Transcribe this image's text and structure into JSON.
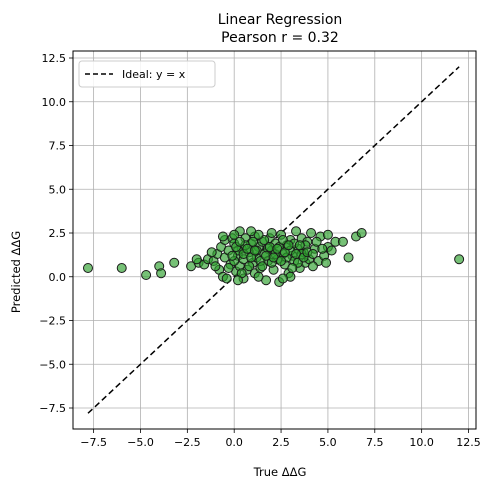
{
  "chart_data": {
    "type": "scatter",
    "title": "Linear Regression",
    "subtitle": "Pearson r = 0.32",
    "xlabel": "True ΔΔG",
    "ylabel": "Predicted ΔΔG",
    "xlim": [
      -8.6,
      12.9
    ],
    "ylim": [
      -8.7,
      12.9
    ],
    "x_ticks": [
      -7.5,
      -5.0,
      -2.5,
      0.0,
      2.5,
      5.0,
      7.5,
      10.0,
      12.5
    ],
    "y_ticks": [
      -7.5,
      -5.0,
      -2.5,
      0.0,
      2.5,
      5.0,
      7.5,
      10.0,
      12.5
    ],
    "x_tick_labels": [
      "−7.5",
      "−5.0",
      "−2.5",
      "0.0",
      "2.5",
      "5.0",
      "7.5",
      "10.0",
      "12.5"
    ],
    "y_tick_labels": [
      "−7.5",
      "−5.0",
      "−2.5",
      "0.0",
      "2.5",
      "5.0",
      "7.5",
      "10.0",
      "12.5"
    ],
    "grid": true,
    "legend": {
      "position": "top-left",
      "entries": [
        "Ideal: y = x"
      ]
    },
    "ideal_line": {
      "label": "Ideal: y = x",
      "x": [
        -7.8,
        12.0
      ],
      "y": [
        -7.8,
        12.0
      ],
      "style": "dashed",
      "color": "#000000"
    },
    "point_color": "#2ca02c",
    "point_edge_color": "#1a1a1a",
    "points": [
      [
        -7.8,
        0.5
      ],
      [
        -6.0,
        0.5
      ],
      [
        -4.7,
        0.1
      ],
      [
        -4.0,
        0.6
      ],
      [
        -3.9,
        0.2
      ],
      [
        -3.2,
        0.8
      ],
      [
        -2.3,
        0.6
      ],
      [
        -1.9,
        0.8
      ],
      [
        -1.6,
        0.7
      ],
      [
        -1.4,
        1.0
      ],
      [
        -1.1,
        0.9
      ],
      [
        -0.9,
        1.3
      ],
      [
        -0.8,
        0.4
      ],
      [
        -0.7,
        1.7
      ],
      [
        -0.6,
        0.0
      ],
      [
        -0.5,
        2.1
      ],
      [
        -0.5,
        1.1
      ],
      [
        -0.4,
        -0.1
      ],
      [
        -0.3,
        1.5
      ],
      [
        -0.2,
        0.7
      ],
      [
        -0.1,
        2.2
      ],
      [
        0.0,
        1.9
      ],
      [
        0.1,
        0.3
      ],
      [
        0.2,
        1.2
      ],
      [
        0.3,
        2.6
      ],
      [
        0.3,
        0.6
      ],
      [
        0.4,
        1.6
      ],
      [
        0.5,
        -0.1
      ],
      [
        0.5,
        1.0
      ],
      [
        0.6,
        2.2
      ],
      [
        0.7,
        0.4
      ],
      [
        0.8,
        1.4
      ],
      [
        0.9,
        1.9
      ],
      [
        1.0,
        0.8
      ],
      [
        1.1,
        2.3
      ],
      [
        1.1,
        0.2
      ],
      [
        1.2,
        1.1
      ],
      [
        1.3,
        1.7
      ],
      [
        1.4,
        0.5
      ],
      [
        1.5,
        2.0
      ],
      [
        1.6,
        1.3
      ],
      [
        1.7,
        -0.2
      ],
      [
        1.8,
        0.9
      ],
      [
        1.9,
        2.2
      ],
      [
        2.0,
        1.5
      ],
      [
        2.1,
        0.4
      ],
      [
        2.2,
        1.9
      ],
      [
        2.3,
        1.0
      ],
      [
        2.4,
        -0.3
      ],
      [
        2.5,
        2.4
      ],
      [
        2.6,
        1.3
      ],
      [
        2.7,
        0.7
      ],
      [
        2.8,
        1.8
      ],
      [
        2.9,
        0.2
      ],
      [
        3.0,
        2.1
      ],
      [
        3.1,
        1.2
      ],
      [
        3.2,
        0.9
      ],
      [
        3.3,
        2.6
      ],
      [
        3.4,
        1.6
      ],
      [
        3.5,
        0.5
      ],
      [
        3.6,
        2.2
      ],
      [
        3.7,
        1.4
      ],
      [
        3.8,
        0.8
      ],
      [
        3.9,
        2.0
      ],
      [
        4.0,
        1.0
      ],
      [
        4.1,
        2.5
      ],
      [
        4.3,
        1.6
      ],
      [
        4.5,
        0.9
      ],
      [
        4.6,
        2.3
      ],
      [
        4.8,
        1.2
      ],
      [
        5.0,
        1.7
      ],
      [
        5.0,
        2.4
      ],
      [
        5.4,
        2.0
      ],
      [
        6.1,
        1.1
      ],
      [
        6.5,
        2.3
      ],
      [
        6.8,
        2.5
      ],
      [
        12.0,
        1.0
      ],
      [
        0.0,
        0.9
      ],
      [
        0.2,
        1.5
      ],
      [
        0.4,
        0.2
      ],
      [
        0.6,
        1.8
      ],
      [
        0.8,
        0.6
      ],
      [
        1.0,
        2.0
      ],
      [
        1.2,
        1.5
      ],
      [
        1.4,
        0.9
      ],
      [
        1.6,
        2.1
      ],
      [
        1.8,
        1.6
      ],
      [
        2.0,
        0.8
      ],
      [
        2.2,
        1.3
      ],
      [
        2.4,
        1.7
      ],
      [
        2.6,
        2.1
      ],
      [
        2.8,
        1.1
      ],
      [
        3.0,
        1.5
      ],
      [
        3.2,
        1.9
      ],
      [
        3.4,
        0.8
      ],
      [
        3.6,
        1.3
      ],
      [
        3.8,
        1.8
      ],
      [
        -0.3,
        0.5
      ],
      [
        -0.1,
        1.2
      ],
      [
        0.1,
        1.7
      ],
      [
        0.3,
        2.0
      ],
      [
        0.5,
        1.3
      ],
      [
        0.7,
        1.6
      ],
      [
        0.9,
        1.1
      ],
      [
        1.1,
        1.5
      ],
      [
        1.3,
        2.4
      ],
      [
        1.5,
        0.6
      ],
      [
        1.7,
        1.2
      ],
      [
        1.9,
        1.7
      ],
      [
        2.1,
        1.1
      ],
      [
        2.3,
        1.6
      ],
      [
        2.5,
        0.9
      ],
      [
        2.7,
        1.4
      ],
      [
        2.9,
        1.8
      ],
      [
        3.1,
        0.5
      ],
      [
        3.3,
        1.3
      ],
      [
        3.5,
        1.8
      ],
      [
        3.7,
        1.1
      ],
      [
        3.9,
        1.4
      ],
      [
        4.2,
        1.3
      ],
      [
        4.4,
        2.0
      ],
      [
        4.7,
        1.6
      ],
      [
        -1.2,
        1.4
      ],
      [
        -0.6,
        2.3
      ],
      [
        0.0,
        2.4
      ],
      [
        0.9,
        2.6
      ],
      [
        2.0,
        2.5
      ],
      [
        3.0,
        0.0
      ],
      [
        2.6,
        -0.1
      ],
      [
        1.3,
        0.0
      ],
      [
        0.2,
        -0.2
      ],
      [
        4.2,
        0.6
      ],
      [
        5.2,
        1.5
      ],
      [
        5.8,
        2.0
      ],
      [
        -2.0,
        1.0
      ],
      [
        -1.0,
        0.6
      ],
      [
        4.9,
        0.8
      ]
    ]
  }
}
